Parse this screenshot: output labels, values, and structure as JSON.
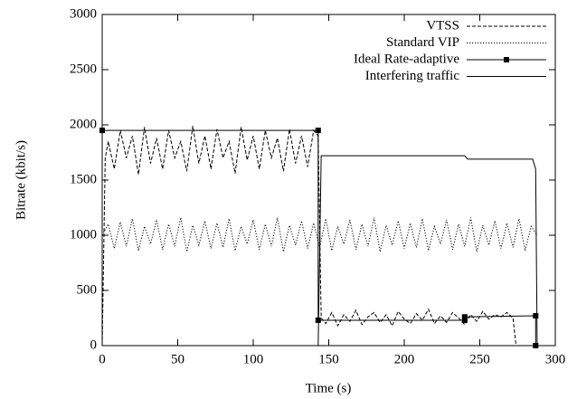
{
  "chart_data": {
    "type": "line",
    "xlabel": "Time (s)",
    "ylabel": "Bitrate (kbit/s)",
    "xlim": [
      0,
      300
    ],
    "ylim": [
      0,
      3000
    ],
    "xticks": [
      0,
      50,
      100,
      150,
      200,
      250,
      300
    ],
    "yticks": [
      0,
      500,
      1000,
      1500,
      2000,
      2500,
      3000
    ],
    "grid": false,
    "legend": "upper right",
    "series": [
      {
        "name": "VTSS",
        "color": "#000000",
        "dash": "dashed",
        "x": [
          0,
          2,
          4,
          8,
          12,
          16,
          20,
          24,
          28,
          32,
          36,
          40,
          44,
          48,
          52,
          56,
          60,
          64,
          68,
          72,
          76,
          80,
          84,
          88,
          92,
          96,
          100,
          104,
          108,
          112,
          116,
          120,
          124,
          128,
          132,
          136,
          140,
          143,
          145,
          148,
          152,
          156,
          160,
          164,
          168,
          172,
          176,
          180,
          184,
          188,
          192,
          196,
          200,
          204,
          208,
          212,
          216,
          220,
          224,
          228,
          232,
          236,
          240,
          244,
          248,
          252,
          256,
          260,
          264,
          268,
          272,
          274
        ],
        "values": [
          0,
          1700,
          1850,
          1600,
          1950,
          1700,
          1900,
          1550,
          1980,
          1650,
          1880,
          1600,
          1950,
          1700,
          1850,
          1580,
          1990,
          1650,
          1900,
          1600,
          1960,
          1700,
          1850,
          1560,
          1980,
          1680,
          1900,
          1600,
          1950,
          1700,
          1880,
          1580,
          1960,
          1650,
          1900,
          1620,
          1950,
          1900,
          250,
          200,
          300,
          180,
          280,
          220,
          320,
          190,
          260,
          300,
          210,
          280,
          180,
          310,
          240,
          200,
          290,
          230,
          330,
          200,
          270,
          210,
          300,
          250,
          190,
          280,
          220,
          310,
          240,
          280,
          260,
          300,
          250,
          0
        ]
      },
      {
        "name": "Standard VIP",
        "color": "#000000",
        "dash": "dotted",
        "x": [
          0,
          4,
          8,
          12,
          16,
          20,
          24,
          28,
          32,
          36,
          40,
          44,
          48,
          52,
          56,
          60,
          64,
          68,
          72,
          76,
          80,
          84,
          88,
          92,
          96,
          100,
          104,
          108,
          112,
          116,
          120,
          124,
          128,
          132,
          136,
          140,
          144,
          148,
          152,
          156,
          160,
          164,
          168,
          172,
          176,
          180,
          184,
          188,
          192,
          196,
          200,
          204,
          208,
          212,
          216,
          220,
          224,
          228,
          232,
          236,
          240,
          244,
          248,
          252,
          256,
          260,
          264,
          268,
          272,
          276,
          280,
          284,
          288
        ],
        "values": [
          1000,
          1100,
          880,
          1120,
          900,
          1150,
          860,
          1080,
          920,
          1140,
          870,
          1100,
          900,
          1160,
          850,
          1090,
          910,
          1130,
          880,
          1110,
          890,
          1150,
          860,
          1080,
          920,
          1140,
          870,
          1100,
          900,
          1160,
          850,
          1090,
          910,
          1130,
          880,
          1110,
          890,
          1150,
          860,
          1080,
          920,
          1140,
          870,
          1100,
          900,
          1160,
          850,
          1090,
          910,
          1130,
          880,
          1110,
          890,
          1150,
          860,
          1080,
          920,
          1140,
          870,
          1100,
          900,
          1160,
          850,
          1090,
          910,
          1130,
          880,
          1110,
          890,
          1150,
          860,
          1080,
          1000
        ]
      },
      {
        "name": "Ideal Rate-adaptive",
        "color": "#000000",
        "dash": "solid",
        "marker": "square",
        "x": [
          0,
          143,
          143,
          240,
          240,
          287,
          287
        ],
        "values": [
          1950,
          1950,
          230,
          230,
          260,
          270,
          0
        ]
      },
      {
        "name": "Interfering traffic",
        "color": "#000000",
        "dash": "solid",
        "x": [
          0,
          143,
          145,
          240,
          242,
          285,
          287,
          288
        ],
        "values": [
          0,
          0,
          1720,
          1720,
          1690,
          1690,
          1600,
          0
        ]
      }
    ]
  }
}
